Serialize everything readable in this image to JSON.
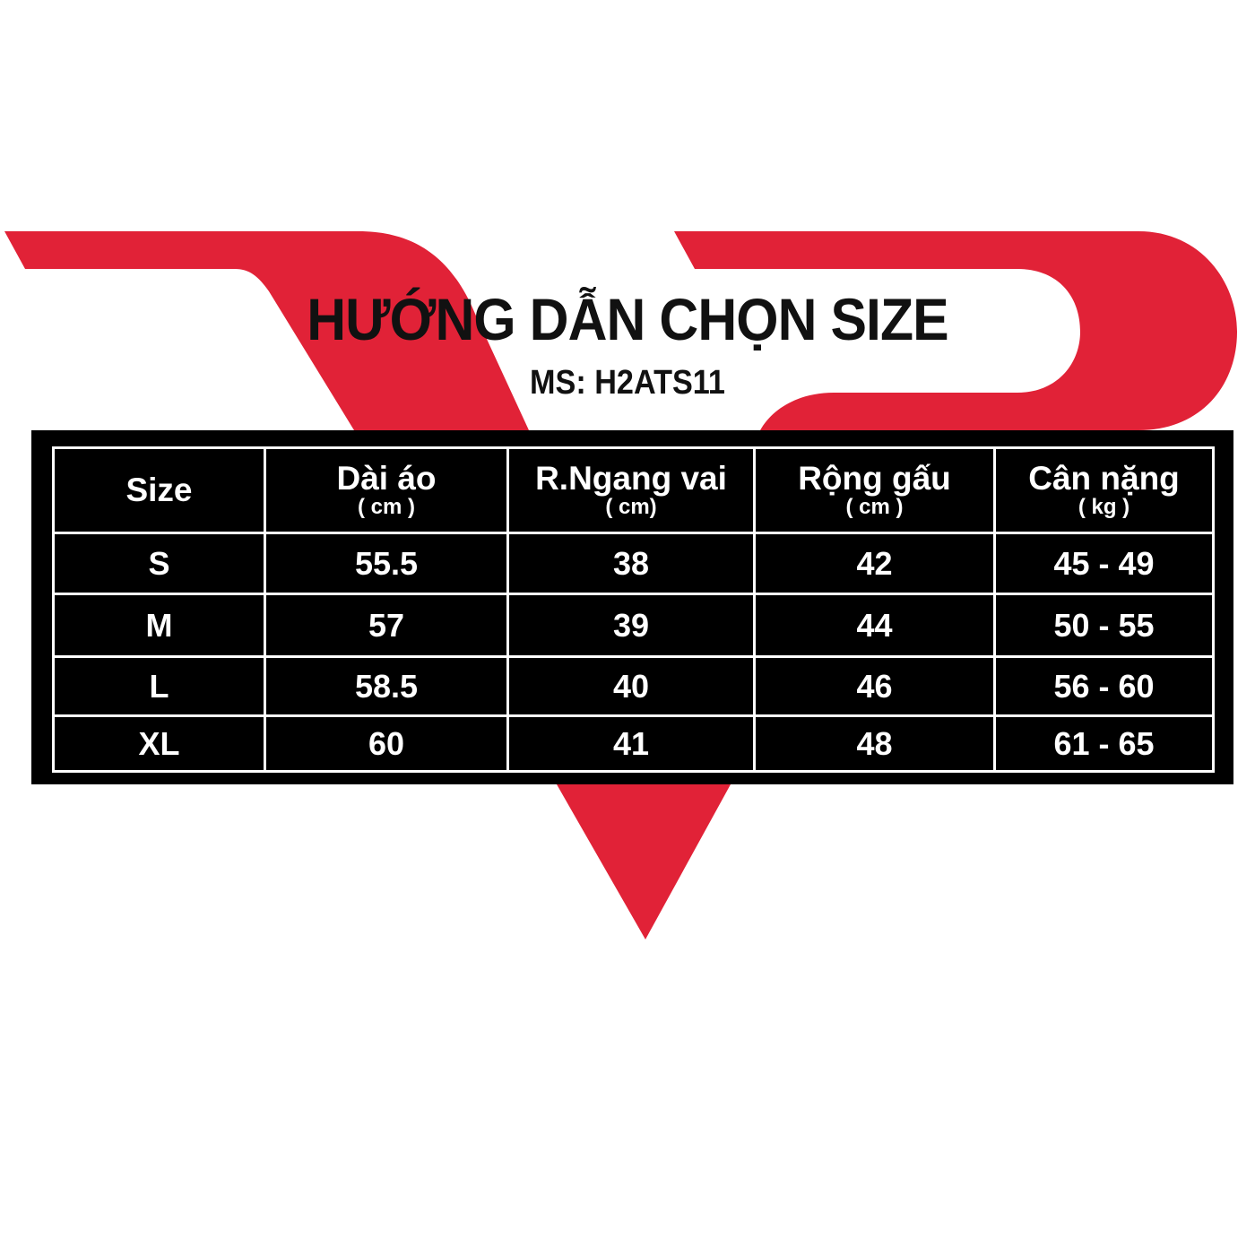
{
  "brand_color": "#e12237",
  "title": "HƯỚNG DẪN CHỌN SIZE",
  "product_code": "MS: H2ATS11",
  "table": {
    "headers": [
      {
        "label": "Size",
        "unit": ""
      },
      {
        "label": "Dài áo",
        "unit": "( cm )"
      },
      {
        "label": "R.Ngang vai",
        "unit": "( cm)"
      },
      {
        "label": "Rộng gấu",
        "unit": "( cm )"
      },
      {
        "label": "Cân nặng",
        "unit": "( kg )"
      }
    ],
    "rows": [
      [
        "S",
        "55.5",
        "38",
        "42",
        "45 - 49"
      ],
      [
        "M",
        "57",
        "39",
        "44",
        "50 - 55"
      ],
      [
        "L",
        "58.5",
        "40",
        "46",
        "56 - 60"
      ],
      [
        "XL",
        "60",
        "41",
        "48",
        "61 - 65"
      ]
    ]
  }
}
